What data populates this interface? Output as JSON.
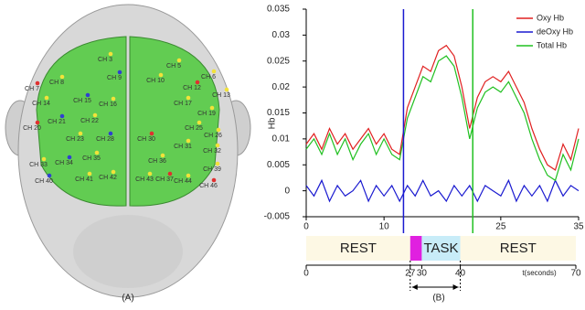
{
  "panels": [
    "(A)",
    "(B)"
  ],
  "channels": [
    "CH 7",
    "CH 3",
    "CH 5",
    "CH 6",
    "CH 8",
    "CH 9",
    "CH 10",
    "CH 12",
    "CH 13",
    "CH 14",
    "CH 15",
    "CH 16",
    "CH 17",
    "CH 19",
    "CH 20",
    "CH 21",
    "CH 22",
    "CH 23",
    "CH 25",
    "CH 26",
    "CH 28",
    "CH 30",
    "CH 31",
    "CH 32",
    "CH 33",
    "CH 34",
    "CH 35",
    "CH 36",
    "CH 37",
    "CH 39",
    "CH 40",
    "CH 41",
    "CH 42",
    "CH 43",
    "CH 44",
    "CH 46"
  ],
  "chart_data": [
    {
      "type": "line",
      "ylabel": "Hb",
      "x": [
        0,
        1,
        2,
        3,
        4,
        5,
        6,
        7,
        8,
        9,
        10,
        11,
        12,
        13,
        14,
        15,
        16,
        17,
        18,
        19,
        20,
        21,
        22,
        23,
        24,
        25,
        26,
        27,
        28,
        29,
        30,
        31,
        32,
        33,
        34,
        35
      ],
      "xlim": [
        0,
        35
      ],
      "xticks": [
        0,
        10,
        25,
        35
      ],
      "ylim": [
        -0.005,
        0.035
      ],
      "yticks": [
        -0.005,
        0,
        0.005,
        0.01,
        0.015,
        0.02,
        0.025,
        0.03,
        0.035
      ],
      "series": [
        {
          "name": "Oxy Hb",
          "color": "#e02020",
          "values": [
            0.009,
            0.011,
            0.008,
            0.012,
            0.009,
            0.011,
            0.008,
            0.01,
            0.012,
            0.009,
            0.011,
            0.008,
            0.007,
            0.016,
            0.02,
            0.024,
            0.023,
            0.027,
            0.028,
            0.026,
            0.02,
            0.012,
            0.018,
            0.021,
            0.022,
            0.021,
            0.023,
            0.02,
            0.017,
            0.012,
            0.008,
            0.005,
            0.004,
            0.009,
            0.006,
            0.012
          ]
        },
        {
          "name": "deOxy Hb",
          "color": "#1a1ad0",
          "values": [
            0.001,
            -0.001,
            0.002,
            -0.002,
            0.001,
            -0.001,
            0.0,
            0.002,
            -0.002,
            0.001,
            -0.001,
            0.001,
            -0.002,
            0.001,
            -0.001,
            0.002,
            -0.001,
            0.0,
            -0.002,
            0.001,
            -0.001,
            0.001,
            -0.002,
            0.001,
            0.0,
            -0.001,
            0.002,
            -0.002,
            0.001,
            -0.001,
            0.001,
            -0.002,
            0.002,
            -0.001,
            0.001,
            0.0
          ]
        },
        {
          "name": "Total Hb",
          "color": "#20c020",
          "values": [
            0.008,
            0.01,
            0.007,
            0.011,
            0.007,
            0.01,
            0.006,
            0.009,
            0.011,
            0.007,
            0.01,
            0.007,
            0.006,
            0.014,
            0.018,
            0.022,
            0.021,
            0.025,
            0.026,
            0.024,
            0.018,
            0.01,
            0.016,
            0.019,
            0.02,
            0.019,
            0.021,
            0.018,
            0.015,
            0.01,
            0.006,
            0.003,
            0.002,
            0.007,
            0.004,
            0.01
          ]
        }
      ],
      "vlines": [
        {
          "x": 12.5,
          "color": "#1a1ad0"
        },
        {
          "x": 21.4,
          "color": "#20c020"
        }
      ]
    },
    {
      "type": "timeline",
      "xlabel": "t(seconds)",
      "xlim": [
        0,
        70
      ],
      "xticks": [
        0,
        27,
        30,
        40,
        70
      ],
      "segments": [
        {
          "label": "REST",
          "start": 0,
          "end": 27,
          "color": "#fdf8e4"
        },
        {
          "start": 27,
          "end": 30,
          "color": "#e020e0"
        },
        {
          "label": "TASK",
          "start": 30,
          "end": 40,
          "color": "#c8ecf8"
        },
        {
          "label": "REST",
          "start": 40,
          "end": 70,
          "color": "#fdf8e4"
        }
      ]
    }
  ]
}
